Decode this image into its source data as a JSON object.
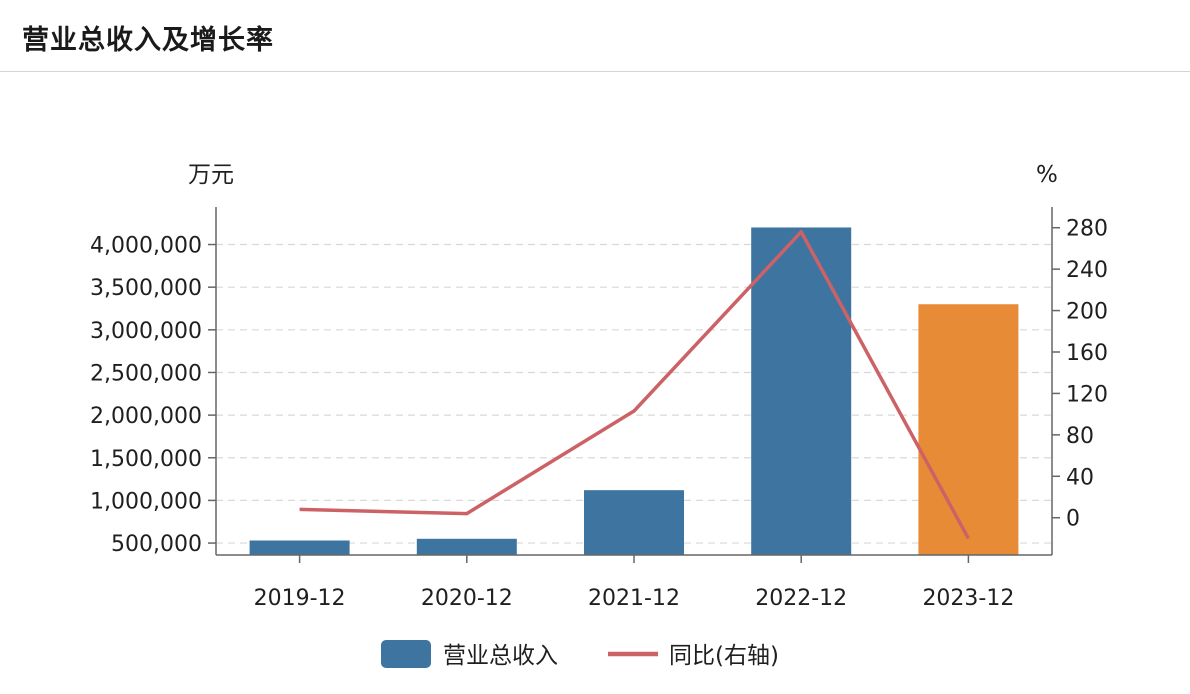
{
  "header": {
    "title": "营业总收入及增长率"
  },
  "colors": {
    "bar": "#3d75a0",
    "bar_highlight": "#e88b37",
    "line": "#cc6266",
    "grid": "#d9d9d9",
    "axis": "#666666"
  },
  "chart_data": {
    "type": "bar",
    "categories": [
      "2019-12",
      "2020-12",
      "2021-12",
      "2022-12",
      "2023-12"
    ],
    "series": [
      {
        "name": "营业总收入",
        "type": "bar",
        "axis": "left",
        "values": [
          530000,
          550000,
          1120000,
          4200000,
          3300000
        ],
        "highlight_index": 4
      },
      {
        "name": "同比(右轴)",
        "type": "line",
        "axis": "right",
        "values": [
          8,
          4,
          103,
          276,
          -20
        ]
      }
    ],
    "y_left": {
      "unit": "万元",
      "ticks": [
        500000,
        1000000,
        1500000,
        2000000,
        2500000,
        3000000,
        3500000,
        4000000
      ],
      "tick_labels": [
        "500,000",
        "1,000,000",
        "1,500,000",
        "2,000,000",
        "2,500,000",
        "3,000,000",
        "3,500,000",
        "4,000,000"
      ],
      "range": [
        360000,
        4440000
      ]
    },
    "y_right": {
      "unit": "%",
      "ticks": [
        0,
        40,
        80,
        120,
        160,
        200,
        240,
        280
      ],
      "tick_labels": [
        "0",
        "40",
        "80",
        "120",
        "160",
        "200",
        "240",
        "280"
      ],
      "range": [
        -36,
        300
      ]
    },
    "grid": true,
    "legend_position": "bottom"
  }
}
